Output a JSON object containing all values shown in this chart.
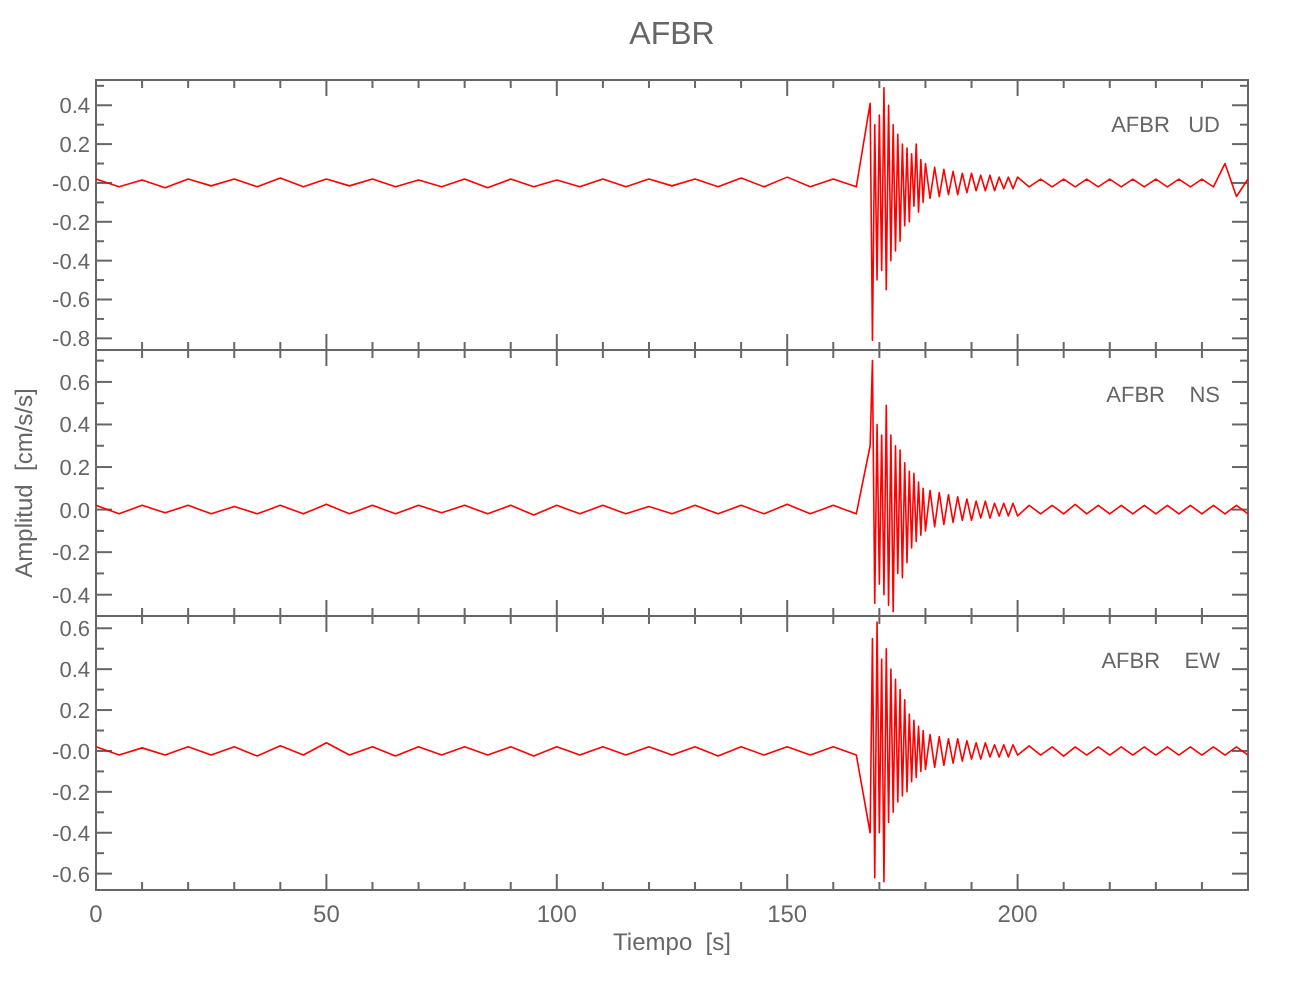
{
  "chart_data": [
    {
      "type": "line",
      "title": "AFBR",
      "annotations": [
        "AFBR   UD"
      ],
      "tick_labels": "y",
      "xlim": [
        0,
        250
      ],
      "ylim": [
        -0.86,
        0.53
      ],
      "xticks": [
        0,
        {
          "value": 10,
          "label": null
        },
        {
          "value": 20,
          "label": null
        },
        {
          "value": 30,
          "label": null
        },
        {
          "value": 40,
          "label": null
        },
        50,
        {
          "value": 60,
          "label": null
        },
        {
          "value": 70,
          "label": null
        },
        {
          "value": 80,
          "label": null
        },
        {
          "value": 90,
          "label": null
        },
        100,
        {
          "value": 110,
          "label": null
        },
        {
          "value": 120,
          "label": null
        },
        {
          "value": 130,
          "label": null
        },
        {
          "value": 140,
          "label": null
        },
        150,
        {
          "value": 160,
          "label": null
        },
        {
          "value": 170,
          "label": null
        },
        {
          "value": 180,
          "label": null
        },
        {
          "value": 190,
          "label": null
        },
        200,
        {
          "value": 210,
          "label": null
        },
        {
          "value": 220,
          "label": null
        },
        {
          "value": 230,
          "label": null
        },
        {
          "value": 240,
          "label": null
        }
      ],
      "yticks": [
        -0.8,
        {
          "value": -0.7,
          "label": null
        },
        -0.6,
        {
          "value": -0.5,
          "label": null
        },
        -0.4,
        {
          "value": -0.3,
          "label": null
        },
        -0.2,
        {
          "value": -0.1,
          "label": null
        },
        {
          "value": 0,
          "label": "-0.0"
        },
        {
          "value": 0.1,
          "label": null
        },
        0.2,
        {
          "value": 0.3,
          "label": null
        },
        0.4,
        {
          "value": 0.5,
          "label": null
        }
      ],
      "x": [
        0,
        5,
        10,
        15,
        20,
        25,
        30,
        35,
        40,
        45,
        50,
        55,
        60,
        65,
        70,
        75,
        80,
        85,
        90,
        95,
        100,
        105,
        110,
        115,
        120,
        125,
        130,
        135,
        140,
        145,
        150,
        155,
        160,
        165,
        168,
        168.5,
        169,
        169.5,
        170,
        170.5,
        171,
        171.5,
        172,
        172.5,
        173,
        173.5,
        174,
        174.5,
        175,
        175.5,
        176,
        176.5,
        177,
        177.5,
        178,
        178.5,
        179,
        179.5,
        180,
        181,
        182,
        183,
        184,
        185,
        186,
        187,
        188,
        189,
        190,
        191,
        192,
        193,
        194,
        195,
        196,
        197,
        198,
        199,
        200,
        202.5,
        205,
        207.5,
        210,
        212.5,
        215,
        217.5,
        220,
        222.5,
        225,
        227.5,
        230,
        232.5,
        235,
        237.5,
        240,
        242.5,
        245,
        247.5,
        250
      ],
      "series": [
        {
          "color": "#ff0000",
          "values": [
            0.02,
            -0.02,
            0.015,
            -0.025,
            0.02,
            -0.015,
            0.02,
            -0.02,
            0.025,
            -0.02,
            0.02,
            -0.015,
            0.02,
            -0.02,
            0.015,
            -0.02,
            0.02,
            -0.025,
            0.02,
            -0.02,
            0.015,
            -0.02,
            0.02,
            -0.02,
            0.02,
            -0.015,
            0.02,
            -0.02,
            0.025,
            -0.02,
            0.03,
            -0.02,
            0.02,
            -0.02,
            0.41,
            -0.81,
            0.3,
            -0.5,
            0.35,
            -0.45,
            0.49,
            -0.55,
            0.4,
            -0.4,
            0.3,
            -0.35,
            0.25,
            -0.3,
            0.2,
            -0.22,
            0.18,
            -0.2,
            0.15,
            -0.12,
            0.2,
            -0.15,
            0.12,
            -0.1,
            0.1,
            -0.08,
            0.08,
            -0.07,
            0.07,
            -0.06,
            0.06,
            -0.06,
            0.05,
            -0.05,
            0.05,
            -0.04,
            0.04,
            -0.04,
            0.04,
            -0.04,
            0.03,
            -0.03,
            0.03,
            -0.03,
            0.03,
            -0.02,
            0.02,
            -0.02,
            0.02,
            -0.02,
            0.02,
            -0.02,
            0.02,
            -0.02,
            0.02,
            -0.02,
            0.02,
            -0.02,
            0.02,
            -0.02,
            0.02,
            -0.02,
            0.1,
            -0.07,
            0.02
          ]
        }
      ]
    },
    {
      "type": "line",
      "ylabel": "Amplitud  [cm/s/s]",
      "annotations": [
        "AFBR    NS"
      ],
      "tick_labels": "y",
      "xlim": [
        0,
        250
      ],
      "ylim": [
        -0.5,
        0.75
      ],
      "xticks": [
        0,
        {
          "value": 10,
          "label": null
        },
        {
          "value": 20,
          "label": null
        },
        {
          "value": 30,
          "label": null
        },
        {
          "value": 40,
          "label": null
        },
        50,
        {
          "value": 60,
          "label": null
        },
        {
          "value": 70,
          "label": null
        },
        {
          "value": 80,
          "label": null
        },
        {
          "value": 90,
          "label": null
        },
        100,
        {
          "value": 110,
          "label": null
        },
        {
          "value": 120,
          "label": null
        },
        {
          "value": 130,
          "label": null
        },
        {
          "value": 140,
          "label": null
        },
        150,
        {
          "value": 160,
          "label": null
        },
        {
          "value": 170,
          "label": null
        },
        {
          "value": 180,
          "label": null
        },
        {
          "value": 190,
          "label": null
        },
        200,
        {
          "value": 210,
          "label": null
        },
        {
          "value": 220,
          "label": null
        },
        {
          "value": 230,
          "label": null
        },
        {
          "value": 240,
          "label": null
        }
      ],
      "yticks": [
        -0.4,
        {
          "value": -0.3,
          "label": null
        },
        -0.2,
        {
          "value": -0.1,
          "label": null
        },
        {
          "value": 0,
          "label": "0.0"
        },
        {
          "value": 0.1,
          "label": null
        },
        0.2,
        {
          "value": 0.3,
          "label": null
        },
        0.4,
        {
          "value": 0.5,
          "label": null
        },
        0.6,
        {
          "value": 0.7,
          "label": null
        }
      ],
      "x": [
        0,
        5,
        10,
        15,
        20,
        25,
        30,
        35,
        40,
        45,
        50,
        55,
        60,
        65,
        70,
        75,
        80,
        85,
        90,
        95,
        100,
        105,
        110,
        115,
        120,
        125,
        130,
        135,
        140,
        145,
        150,
        155,
        160,
        165,
        168,
        168.5,
        169,
        169.5,
        170,
        170.5,
        171,
        171.5,
        172,
        172.5,
        173,
        173.5,
        174,
        174.5,
        175,
        175.5,
        176,
        176.5,
        177,
        177.5,
        178,
        178.5,
        179,
        179.5,
        180,
        181,
        182,
        183,
        184,
        185,
        186,
        187,
        188,
        189,
        190,
        191,
        192,
        193,
        194,
        195,
        196,
        197,
        198,
        199,
        200,
        202.5,
        205,
        207.5,
        210,
        212.5,
        215,
        217.5,
        220,
        222.5,
        225,
        227.5,
        230,
        232.5,
        235,
        237.5,
        240,
        242.5,
        245,
        247.5,
        250
      ],
      "series": [
        {
          "color": "#ff0000",
          "values": [
            0.02,
            -0.02,
            0.02,
            -0.015,
            0.02,
            -0.02,
            0.015,
            -0.02,
            0.02,
            -0.02,
            0.025,
            -0.02,
            0.02,
            -0.02,
            0.02,
            -0.015,
            0.02,
            -0.02,
            0.02,
            -0.025,
            0.02,
            -0.02,
            0.02,
            -0.02,
            0.015,
            -0.02,
            0.02,
            -0.02,
            0.02,
            -0.02,
            0.025,
            -0.02,
            0.02,
            -0.02,
            0.3,
            0.7,
            -0.44,
            0.4,
            -0.35,
            0.35,
            -0.4,
            0.49,
            -0.45,
            0.35,
            -0.48,
            0.3,
            -0.3,
            0.28,
            -0.32,
            0.22,
            -0.25,
            0.18,
            -0.18,
            0.17,
            -0.15,
            0.13,
            -0.12,
            0.1,
            -0.1,
            0.09,
            -0.08,
            0.08,
            -0.07,
            0.07,
            -0.06,
            0.06,
            -0.05,
            0.05,
            -0.05,
            0.04,
            -0.04,
            0.04,
            -0.04,
            0.03,
            -0.03,
            0.03,
            -0.03,
            0.03,
            -0.03,
            0.02,
            -0.02,
            0.02,
            -0.02,
            0.025,
            -0.02,
            0.02,
            -0.02,
            0.02,
            -0.02,
            0.02,
            -0.02,
            0.02,
            -0.02,
            0.02,
            -0.02,
            0.02,
            -0.02,
            0.02,
            -0.02
          ]
        }
      ]
    },
    {
      "type": "line",
      "xlabel": "Tiempo  [s]",
      "annotations": [
        "AFBR    EW"
      ],
      "xlim": [
        0,
        250
      ],
      "ylim": [
        -0.68,
        0.66
      ],
      "xticks": [
        0,
        {
          "value": 10,
          "label": null
        },
        {
          "value": 20,
          "label": null
        },
        {
          "value": 30,
          "label": null
        },
        {
          "value": 40,
          "label": null
        },
        50,
        {
          "value": 60,
          "label": null
        },
        {
          "value": 70,
          "label": null
        },
        {
          "value": 80,
          "label": null
        },
        {
          "value": 90,
          "label": null
        },
        100,
        {
          "value": 110,
          "label": null
        },
        {
          "value": 120,
          "label": null
        },
        {
          "value": 130,
          "label": null
        },
        {
          "value": 140,
          "label": null
        },
        150,
        {
          "value": 160,
          "label": null
        },
        {
          "value": 170,
          "label": null
        },
        {
          "value": 180,
          "label": null
        },
        {
          "value": 190,
          "label": null
        },
        200,
        {
          "value": 210,
          "label": null
        },
        {
          "value": 220,
          "label": null
        },
        {
          "value": 230,
          "label": null
        },
        {
          "value": 240,
          "label": null
        }
      ],
      "yticks": [
        -0.6,
        {
          "value": -0.5,
          "label": null
        },
        -0.4,
        {
          "value": -0.3,
          "label": null
        },
        -0.2,
        {
          "value": -0.1,
          "label": null
        },
        {
          "value": 0,
          "label": "-0.0"
        },
        {
          "value": 0.1,
          "label": null
        },
        0.2,
        {
          "value": 0.3,
          "label": null
        },
        0.4,
        {
          "value": 0.5,
          "label": null
        },
        0.6
      ],
      "x": [
        0,
        5,
        10,
        15,
        20,
        25,
        30,
        35,
        40,
        45,
        50,
        55,
        60,
        65,
        70,
        75,
        80,
        85,
        90,
        95,
        100,
        105,
        110,
        115,
        120,
        125,
        130,
        135,
        140,
        145,
        150,
        155,
        160,
        165,
        168,
        168.5,
        169,
        169.5,
        170,
        170.5,
        171,
        171.5,
        172,
        172.5,
        173,
        173.5,
        174,
        174.5,
        175,
        175.5,
        176,
        176.5,
        177,
        177.5,
        178,
        178.5,
        179,
        179.5,
        180,
        181,
        182,
        183,
        184,
        185,
        186,
        187,
        188,
        189,
        190,
        191,
        192,
        193,
        194,
        195,
        196,
        197,
        198,
        199,
        200,
        202.5,
        205,
        207.5,
        210,
        212.5,
        215,
        217.5,
        220,
        222.5,
        225,
        227.5,
        230,
        232.5,
        235,
        237.5,
        240,
        242.5,
        245,
        247.5,
        250
      ],
      "series": [
        {
          "color": "#ff0000",
          "values": [
            0.02,
            -0.02,
            0.015,
            -0.02,
            0.02,
            -0.02,
            0.02,
            -0.025,
            0.025,
            -0.02,
            0.04,
            -0.02,
            0.02,
            -0.025,
            0.02,
            -0.02,
            0.02,
            -0.02,
            0.02,
            -0.025,
            0.02,
            -0.02,
            0.02,
            -0.02,
            0.02,
            -0.02,
            0.02,
            -0.025,
            0.02,
            -0.02,
            0.02,
            -0.02,
            0.02,
            -0.02,
            -0.4,
            0.55,
            -0.62,
            0.63,
            -0.4,
            0.45,
            -0.64,
            0.5,
            -0.35,
            0.4,
            -0.3,
            0.35,
            -0.25,
            0.3,
            -0.22,
            0.25,
            -0.2,
            0.18,
            -0.15,
            0.15,
            -0.13,
            0.12,
            -0.1,
            0.1,
            -0.09,
            0.08,
            -0.08,
            0.07,
            -0.07,
            0.06,
            -0.06,
            0.06,
            -0.05,
            0.05,
            -0.04,
            0.04,
            -0.04,
            0.04,
            -0.03,
            0.03,
            -0.03,
            0.03,
            -0.03,
            0.03,
            -0.02,
            0.025,
            -0.02,
            0.02,
            -0.025,
            0.02,
            -0.02,
            0.02,
            -0.02,
            0.02,
            -0.02,
            0.02,
            -0.02,
            0.02,
            -0.02,
            0.02,
            -0.02,
            0.02,
            -0.02,
            0.02,
            -0.02
          ]
        }
      ]
    }
  ]
}
